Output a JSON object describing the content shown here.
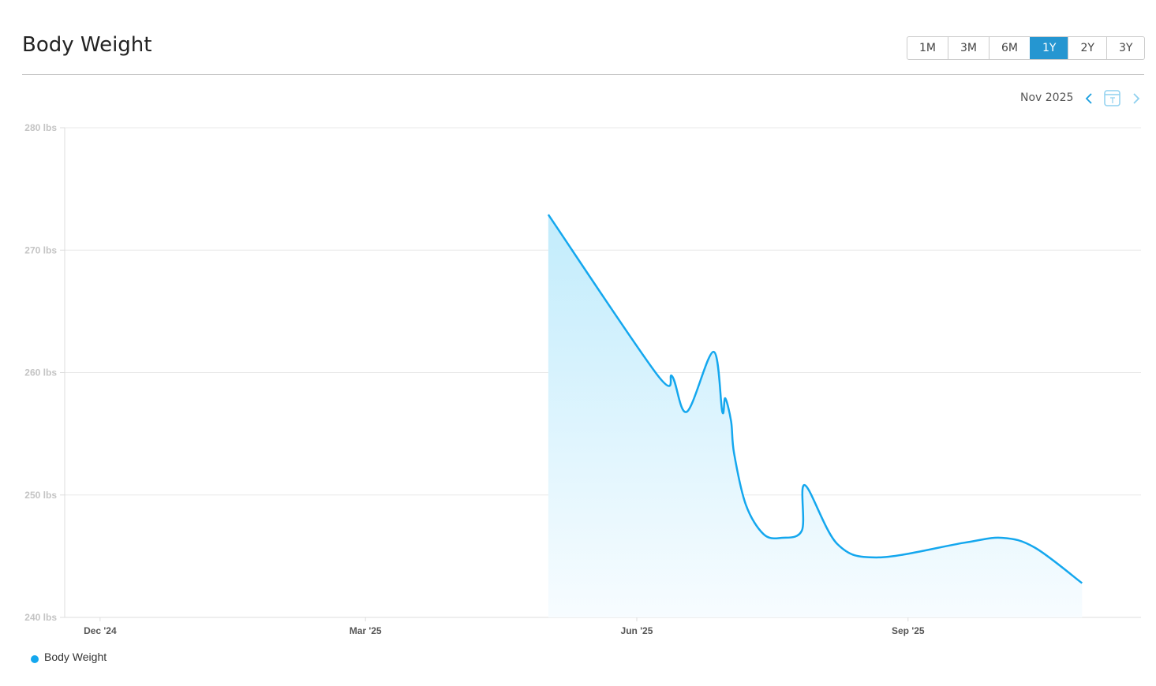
{
  "header": {
    "title": "Body Weight"
  },
  "ranges": [
    "1M",
    "3M",
    "6M",
    "1Y",
    "2Y",
    "3Y"
  ],
  "active_range": 3,
  "period": "Nov 2025",
  "chart_data": {
    "type": "area",
    "x": [
      "2025-05-02",
      "2025-06-08",
      "2025-06-13",
      "2025-06-18",
      "2025-06-27",
      "2025-06-30",
      "2025-07-01",
      "2025-07-03",
      "2025-07-04",
      "2025-07-08",
      "2025-07-14",
      "2025-07-20",
      "2025-07-27",
      "2025-07-28",
      "2025-08-08",
      "2025-08-22",
      "2025-09-20",
      "2025-10-03",
      "2025-10-14",
      "2025-10-30"
    ],
    "series": [
      {
        "name": "Body Weight",
        "color": "#14a7ee",
        "values": [
          272.9,
          259.8,
          259.7,
          256.8,
          261.7,
          256.8,
          257.9,
          256.0,
          253.4,
          249.2,
          246.8,
          246.5,
          247.1,
          250.8,
          246.0,
          244.9,
          246.1,
          246.5,
          245.7,
          242.8
        ]
      }
    ],
    "xlim": [
      "2024-11-19",
      "2025-11-19"
    ],
    "xticks": [
      {
        "value": "2024-12-01",
        "label": "Dec '24"
      },
      {
        "value": "2025-03-01",
        "label": "Mar '25"
      },
      {
        "value": "2025-06-01",
        "label": "Jun '25"
      },
      {
        "value": "2025-09-01",
        "label": "Sep '25"
      }
    ],
    "ylim": [
      240,
      280
    ],
    "yticks": [
      {
        "value": 240,
        "label": "240 lbs"
      },
      {
        "value": 250,
        "label": "250 lbs"
      },
      {
        "value": 260,
        "label": "260 lbs"
      },
      {
        "value": 270,
        "label": "270 lbs"
      },
      {
        "value": 280,
        "label": "280 lbs"
      }
    ],
    "grid": true
  }
}
